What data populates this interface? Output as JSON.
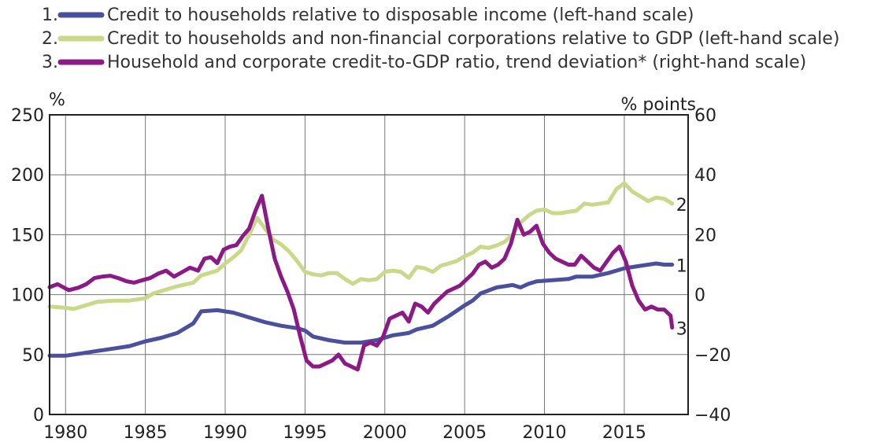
{
  "chart_data": {
    "type": "line",
    "grid": true,
    "legend_placement": "top-left",
    "left_axis": {
      "unit": "%",
      "ylim": [
        0,
        250
      ],
      "ticks": [
        "0",
        "50",
        "100",
        "150",
        "200",
        "250"
      ]
    },
    "right_axis": {
      "unit": "% points",
      "ylim": [
        -40,
        60
      ],
      "ticks": [
        "−40",
        "−20",
        "0",
        "20",
        "40",
        "60"
      ]
    },
    "x_axis": {
      "xlim": [
        1979,
        2019
      ],
      "ticks": [
        "1980",
        "1985",
        "1990",
        "1995",
        "2000",
        "2005",
        "2010",
        "2015"
      ]
    },
    "legend": [
      {
        "number": "1.",
        "text": "Credit to households relative to disposable income (left-hand scale)"
      },
      {
        "number": "2.",
        "text": "Credit to households and non-financial corporations relative to GDP (left-hand scale)"
      },
      {
        "number": "3.",
        "text": "Household and corporate credit-to-GDP ratio, trend deviation* (right-hand scale)"
      }
    ],
    "series": [
      {
        "label": "1",
        "axis": "left",
        "color": "#4a4f9e",
        "points": [
          [
            1979.0,
            49
          ],
          [
            1980,
            49
          ],
          [
            1981,
            51
          ],
          [
            1982,
            53
          ],
          [
            1983,
            55
          ],
          [
            1984,
            57
          ],
          [
            1985,
            61
          ],
          [
            1986,
            64
          ],
          [
            1987,
            68
          ],
          [
            1988,
            76
          ],
          [
            1988.5,
            86
          ],
          [
            1989.5,
            87
          ],
          [
            1990.5,
            85
          ],
          [
            1991.5,
            81
          ],
          [
            1992.5,
            77
          ],
          [
            1993.5,
            74
          ],
          [
            1994.5,
            72
          ],
          [
            1995,
            70
          ],
          [
            1995.5,
            65
          ],
          [
            1996.5,
            62
          ],
          [
            1997.5,
            60
          ],
          [
            1998.5,
            60
          ],
          [
            1999.5,
            62
          ],
          [
            2000.5,
            66
          ],
          [
            2001.5,
            68
          ],
          [
            2002,
            71
          ],
          [
            2003,
            74
          ],
          [
            2004,
            82
          ],
          [
            2005,
            91
          ],
          [
            2005.5,
            95
          ],
          [
            2006,
            101
          ],
          [
            2007,
            106
          ],
          [
            2008,
            108
          ],
          [
            2008.5,
            106
          ],
          [
            2009,
            109
          ],
          [
            2009.5,
            111
          ],
          [
            2010.5,
            112
          ],
          [
            2011.5,
            113
          ],
          [
            2012,
            115
          ],
          [
            2013,
            115
          ],
          [
            2014,
            118
          ],
          [
            2015,
            122
          ],
          [
            2016,
            124
          ],
          [
            2017,
            126
          ],
          [
            2017.5,
            125
          ],
          [
            2018,
            125
          ]
        ]
      },
      {
        "label": "2",
        "axis": "left",
        "color": "#c9d98a",
        "points": [
          [
            1979.0,
            90
          ],
          [
            1980,
            89
          ],
          [
            1980.5,
            88
          ],
          [
            1981,
            90
          ],
          [
            1982,
            94
          ],
          [
            1983,
            95
          ],
          [
            1984,
            95
          ],
          [
            1985,
            97
          ],
          [
            1985.5,
            101
          ],
          [
            1986,
            103
          ],
          [
            1987,
            107
          ],
          [
            1988,
            110
          ],
          [
            1988.5,
            116
          ],
          [
            1989.5,
            120
          ],
          [
            1990,
            126
          ],
          [
            1990.5,
            131
          ],
          [
            1991,
            137
          ],
          [
            1991.5,
            150
          ],
          [
            1992,
            164
          ],
          [
            1992.5,
            155
          ],
          [
            1993,
            146
          ],
          [
            1993.5,
            142
          ],
          [
            1994,
            136
          ],
          [
            1994.5,
            128
          ],
          [
            1995,
            119
          ],
          [
            1995.5,
            117
          ],
          [
            1996,
            116
          ],
          [
            1996.5,
            118
          ],
          [
            1997,
            118
          ],
          [
            1997.5,
            113
          ],
          [
            1998,
            109
          ],
          [
            1998.5,
            113
          ],
          [
            1999,
            112
          ],
          [
            1999.5,
            113
          ],
          [
            2000,
            119
          ],
          [
            2000.5,
            120
          ],
          [
            2001,
            119
          ],
          [
            2001.5,
            114
          ],
          [
            2002,
            123
          ],
          [
            2002.5,
            122
          ],
          [
            2003,
            119
          ],
          [
            2003.5,
            124
          ],
          [
            2004,
            126
          ],
          [
            2004.5,
            128
          ],
          [
            2005,
            132
          ],
          [
            2005.5,
            135
          ],
          [
            2006,
            140
          ],
          [
            2006.5,
            139
          ],
          [
            2007,
            141
          ],
          [
            2007.5,
            144
          ],
          [
            2008,
            150
          ],
          [
            2008.5,
            160
          ],
          [
            2009,
            166
          ],
          [
            2009.5,
            170
          ],
          [
            2010,
            171
          ],
          [
            2010.5,
            168
          ],
          [
            2011,
            168
          ],
          [
            2011.5,
            169
          ],
          [
            2012,
            170
          ],
          [
            2012.5,
            176
          ],
          [
            2013,
            175
          ],
          [
            2013.5,
            176
          ],
          [
            2014,
            177
          ],
          [
            2014.5,
            188
          ],
          [
            2015,
            193
          ],
          [
            2015.5,
            186
          ],
          [
            2016,
            182
          ],
          [
            2016.5,
            178
          ],
          [
            2017,
            181
          ],
          [
            2017.5,
            180
          ],
          [
            2018,
            176
          ]
        ]
      },
      {
        "label": "3",
        "axis": "right",
        "color": "#8b1a86",
        "points": [
          [
            1979.0,
            2.5
          ],
          [
            1979.5,
            3.5
          ],
          [
            1980.2,
            1.5
          ],
          [
            1980.8,
            2.3
          ],
          [
            1981.3,
            3.5
          ],
          [
            1981.8,
            5.5
          ],
          [
            1982.3,
            6
          ],
          [
            1982.8,
            6.3
          ],
          [
            1983.3,
            5.5
          ],
          [
            1983.8,
            4.5
          ],
          [
            1984.3,
            4
          ],
          [
            1984.8,
            4.8
          ],
          [
            1985.3,
            5.5
          ],
          [
            1985.8,
            7
          ],
          [
            1986.3,
            8
          ],
          [
            1986.8,
            6
          ],
          [
            1987.3,
            7.5
          ],
          [
            1987.8,
            9
          ],
          [
            1988.3,
            8
          ],
          [
            1988.7,
            12
          ],
          [
            1989.1,
            12.5
          ],
          [
            1989.5,
            10.5
          ],
          [
            1989.9,
            15
          ],
          [
            1990.3,
            16
          ],
          [
            1990.7,
            16.5
          ],
          [
            1991.1,
            19.5
          ],
          [
            1991.5,
            22
          ],
          [
            1991.9,
            28
          ],
          [
            1992.3,
            33
          ],
          [
            1992.7,
            22
          ],
          [
            1993.1,
            12
          ],
          [
            1993.5,
            6
          ],
          [
            1993.9,
            1
          ],
          [
            1994.3,
            -5
          ],
          [
            1994.7,
            -14
          ],
          [
            1995.1,
            -22
          ],
          [
            1995.5,
            -24
          ],
          [
            1995.9,
            -24
          ],
          [
            1996.3,
            -23
          ],
          [
            1996.7,
            -22
          ],
          [
            1997.1,
            -20
          ],
          [
            1997.5,
            -23
          ],
          [
            1997.9,
            -24
          ],
          [
            1998.3,
            -25
          ],
          [
            1998.7,
            -17
          ],
          [
            1999.1,
            -16
          ],
          [
            1999.5,
            -17
          ],
          [
            1999.9,
            -14
          ],
          [
            2000.3,
            -8
          ],
          [
            2000.7,
            -7
          ],
          [
            2001.1,
            -6
          ],
          [
            2001.5,
            -9
          ],
          [
            2001.9,
            -3
          ],
          [
            2002.3,
            -4
          ],
          [
            2002.7,
            -6
          ],
          [
            2003.1,
            -3
          ],
          [
            2003.5,
            -1
          ],
          [
            2003.9,
            1
          ],
          [
            2004.3,
            2
          ],
          [
            2004.7,
            3
          ],
          [
            2005.1,
            5
          ],
          [
            2005.5,
            7
          ],
          [
            2005.9,
            10
          ],
          [
            2006.3,
            11
          ],
          [
            2006.7,
            9
          ],
          [
            2007.1,
            10
          ],
          [
            2007.5,
            12
          ],
          [
            2007.9,
            17
          ],
          [
            2008.3,
            25
          ],
          [
            2008.7,
            20
          ],
          [
            2009.1,
            21
          ],
          [
            2009.5,
            23
          ],
          [
            2009.9,
            17
          ],
          [
            2010.3,
            14
          ],
          [
            2010.7,
            12
          ],
          [
            2011.1,
            11
          ],
          [
            2011.5,
            10
          ],
          [
            2011.9,
            10
          ],
          [
            2012.3,
            13
          ],
          [
            2012.7,
            11
          ],
          [
            2013.1,
            9
          ],
          [
            2013.5,
            8
          ],
          [
            2013.9,
            11
          ],
          [
            2014.3,
            14
          ],
          [
            2014.7,
            16
          ],
          [
            2015.1,
            11
          ],
          [
            2015.5,
            3
          ],
          [
            2015.9,
            -2
          ],
          [
            2016.3,
            -5
          ],
          [
            2016.7,
            -4
          ],
          [
            2017.1,
            -5
          ],
          [
            2017.5,
            -5
          ],
          [
            2017.9,
            -7
          ],
          [
            2018,
            -11
          ]
        ]
      }
    ]
  }
}
